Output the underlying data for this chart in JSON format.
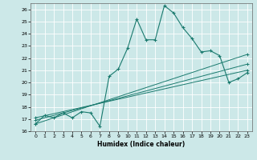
{
  "xlabel": "Humidex (Indice chaleur)",
  "bg_color": "#cce8e8",
  "grid_color": "#ffffff",
  "line_color": "#1a7a6e",
  "xlim": [
    -0.5,
    23.5
  ],
  "ylim": [
    16,
    26.5
  ],
  "xticks": [
    0,
    1,
    2,
    3,
    4,
    5,
    6,
    7,
    8,
    9,
    10,
    11,
    12,
    13,
    14,
    15,
    16,
    17,
    18,
    19,
    20,
    21,
    22,
    23
  ],
  "yticks": [
    16,
    17,
    18,
    19,
    20,
    21,
    22,
    23,
    24,
    25,
    26
  ],
  "main_x": [
    0,
    1,
    2,
    3,
    4,
    5,
    6,
    7,
    8,
    9,
    10,
    11,
    12,
    13,
    14,
    15,
    16,
    17,
    18,
    19,
    20,
    21,
    22,
    23
  ],
  "main_y": [
    16.6,
    17.3,
    17.1,
    17.5,
    17.1,
    17.6,
    17.5,
    16.4,
    20.5,
    21.1,
    22.8,
    25.2,
    23.5,
    23.5,
    26.3,
    25.7,
    24.5,
    23.6,
    22.5,
    22.6,
    22.2,
    20.0,
    20.3,
    20.8
  ],
  "line2_x": [
    0,
    23
  ],
  "line2_y": [
    16.6,
    22.3
  ],
  "line3_x": [
    0,
    23
  ],
  "line3_y": [
    16.9,
    21.5
  ],
  "line4_x": [
    0,
    23
  ],
  "line4_y": [
    17.1,
    21.0
  ]
}
